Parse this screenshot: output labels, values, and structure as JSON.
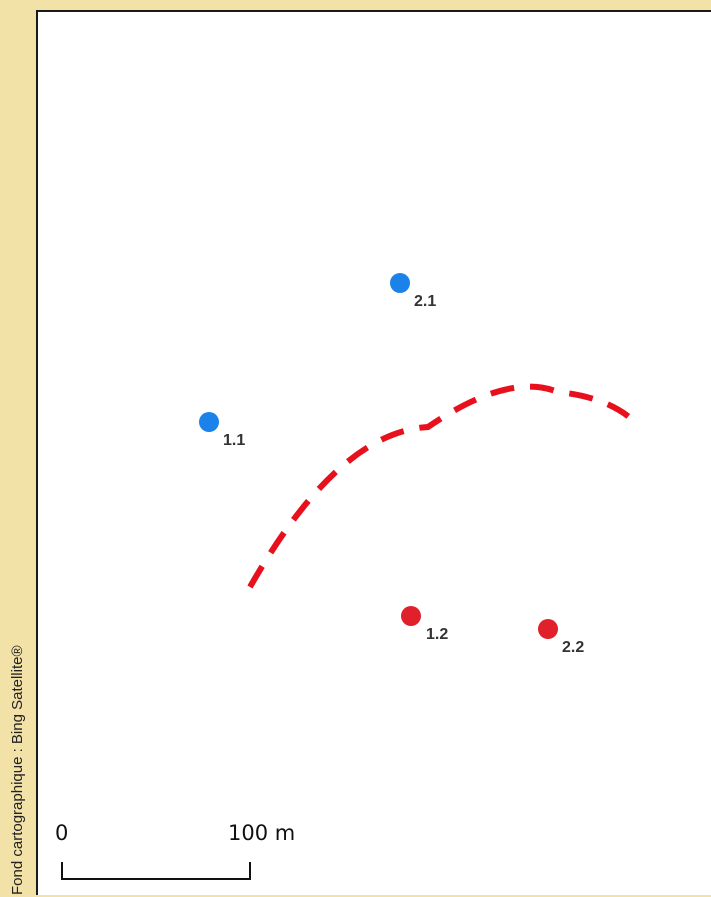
{
  "credit": "Fond cartographique : Bing Satellite®",
  "colors": {
    "background_strip": "#f3e2a8",
    "map_background": "#ffffff",
    "blue_point": "#1a82e8",
    "red_point": "#e0202a",
    "boundary": "#e8101c"
  },
  "points": [
    {
      "id": "1.1",
      "label": "1.1",
      "color": "blue"
    },
    {
      "id": "2.1",
      "label": "2.1",
      "color": "blue"
    },
    {
      "id": "1.2",
      "label": "1.2",
      "color": "red"
    },
    {
      "id": "2.2",
      "label": "2.2",
      "color": "red"
    }
  ],
  "boundary_line": {
    "style": "dashed",
    "color": "red"
  },
  "scale_bar": {
    "start_label": "0",
    "end_label": "100 m"
  }
}
